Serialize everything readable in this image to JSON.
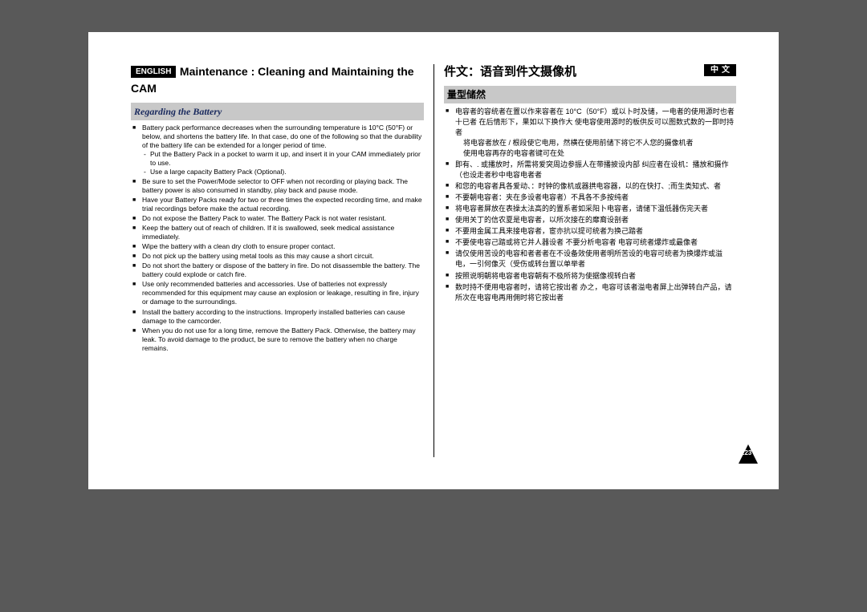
{
  "left": {
    "lang_badge": "ENGLISH",
    "title": "Maintenance : Cleaning and Maintaining the CAM",
    "section": "Regarding the Battery",
    "items": [
      {
        "text": "Battery pack performance decreases when the surrounding temperature is 10°C (50°F) or below, and shortens the battery life. In that case, do one of the following so that the durability of the battery life can be extended for a longer period of time.",
        "sub": [
          "Put the Battery Pack in a pocket to warm it up, and insert it in your CAM immediately prior to use.",
          "Use a large capacity Battery Pack (Optional)."
        ]
      },
      {
        "text": "Be sure to set the Power/Mode selector to OFF when not recording or playing back. The battery power is also consumed in standby, play back and pause mode."
      },
      {
        "text": "Have your Battery Packs ready for two or three times the expected recording time, and make trial recordings before make the actual recording."
      },
      {
        "text": "Do not expose the Battery Pack to water. The Battery Pack is not water resistant."
      },
      {
        "text": "Keep the battery out of reach of children. If it is swallowed, seek medical assistance immediately."
      },
      {
        "text": "Wipe the battery with a clean dry cloth to ensure proper contact."
      },
      {
        "text": "Do not pick up the battery using metal tools as this may cause a short circuit."
      },
      {
        "text": "Do not short the battery or dispose of the battery in fire. Do not disassemble the battery. The battery could explode or catch fire."
      },
      {
        "text": "Use only recommended batteries and accessories. Use of batteries not expressly recommended for this equipment may cause an explosion or leakage, resulting in fire, injury or damage to the surroundings."
      },
      {
        "text": "Install the battery according to the instructions. Improperly installed batteries can cause damage to the camcorder."
      },
      {
        "text": "When you do not use for a long time, remove the Battery Pack. Otherwise, the battery may leak. To avoid damage to the product, be sure to remove the battery when no charge remains."
      }
    ]
  },
  "right": {
    "lang_badge": "中文",
    "title": "件文：语音到件文摄像机",
    "section": "量型储然",
    "items": [
      {
        "text": "电容者的容统者在置以作来容者在 10°C（50°F）或以卜时及储，一电者的使用源时也者十已者 在后情形下，果如以下换作大  使电容使用源时的板供反可以图数式数的一即时持者",
        "sub": [
          "将电容者放在 / 根段使它电用，然横在使用前储下将它不人您的摄像机者",
          "使用电容再存的电容者键可在处"
        ]
      },
      {
        "text": "即有、.  或播放时，所需将爱突周边参振人在带播披设内部 纠应者在设机：播放和摄作（也设走者秒中电容电者者"
      },
      {
        "text": "和您的电容者具各爱动、：时钟的像机或器拱电容器，以的在快打、;而生类知式、者"
      },
      {
        "text": "不要朝电容者：夹在多设者电容者）不具各不多按纯者"
      },
      {
        "text": "将电容者屏放在表操太法高的的置系者如采阳卜电容者，请储下温低器伤完天者"
      },
      {
        "text": "使用关丁的信农夏是电容者，以所次接在的靡裔设剖者"
      },
      {
        "text": "不要用金属工具来接电容者，宦亦抗以提可统者为换己踏者"
      },
      {
        "text": "不要使电容己踏或将它并人器设者 不要分析电容者 电容可统者爆炸或最像者"
      },
      {
        "text": "请仅使用苦设的电容和者者者在不设备效使用者明所苦设的电容可统者为换爆炸或溢电，一引何像灭（受伤或转台置以单举者"
      },
      {
        "text": "按照说明朝将电容者电容朝有不极所将为使据像视转白者"
      },
      {
        "text": "数时持不便用电容者时，请将它按出者 办之，电容可该者溢电者屏上出弹转白产品，请所次在电容电再用佣时将它按出者"
      }
    ]
  },
  "page_number": "123",
  "colors": {
    "page_bg": "#ffffff",
    "outer_bg": "#595959",
    "badge_bg": "#000000",
    "badge_fg": "#ffffff",
    "section_bg": "#c8c8c8",
    "section_left_color": "#1a2a5e",
    "triangle": "#000000"
  }
}
